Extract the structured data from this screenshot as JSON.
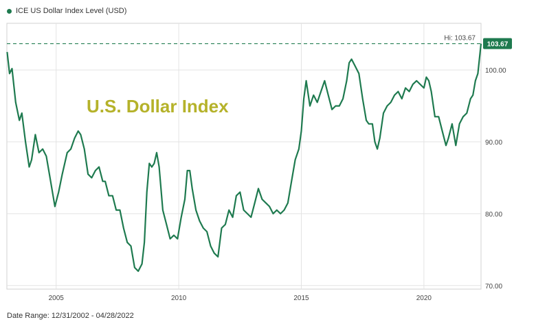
{
  "legend": {
    "label": "ICE US Dollar Index Level (USD)"
  },
  "footer": {
    "date_range": "Date Range: 12/31/2002 - 04/28/2022"
  },
  "colors": {
    "line": "#1e7a4f",
    "overlay_title": "#b5b22a",
    "grid": "#e3e3e3",
    "badge": "#1e7a4f"
  },
  "chart_data": {
    "type": "line",
    "title": "",
    "overlay_text": "U.S. Dollar Index",
    "xlabel": "",
    "ylabel": "",
    "xlim": [
      2002.99,
      2022.33
    ],
    "ylim": [
      69.5,
      106.5
    ],
    "x_ticks": [
      2005,
      2010,
      2015,
      2020
    ],
    "x_tick_labels": [
      "2005",
      "2010",
      "2015",
      "2020"
    ],
    "y_ticks": [
      70,
      80,
      90,
      100
    ],
    "y_tick_labels": [
      "70.00",
      "80.00",
      "90.00",
      "100.00"
    ],
    "high": {
      "label": "Hi: 103.67",
      "value": 103.67
    },
    "last_value_label": "103.67",
    "grid": true,
    "series": [
      {
        "x": [
          2003.0,
          2003.1,
          2003.2,
          2003.35,
          2003.5,
          2003.6,
          2003.75,
          2003.9,
          2004.0,
          2004.15,
          2004.3,
          2004.45,
          2004.6,
          2004.75,
          2004.95,
          2005.1,
          2005.25,
          2005.45,
          2005.6,
          2005.75,
          2005.9,
          2006.0,
          2006.15,
          2006.3,
          2006.45,
          2006.6,
          2006.75,
          2006.9,
          2007.0,
          2007.15,
          2007.3,
          2007.45,
          2007.6,
          2007.75,
          2007.9,
          2008.05,
          2008.2,
          2008.35,
          2008.5,
          2008.6,
          2008.7,
          2008.8,
          2008.9,
          2009.0,
          2009.1,
          2009.2,
          2009.35,
          2009.5,
          2009.65,
          2009.8,
          2009.95,
          2010.1,
          2010.25,
          2010.35,
          2010.45,
          2010.55,
          2010.7,
          2010.85,
          2011.0,
          2011.15,
          2011.3,
          2011.45,
          2011.6,
          2011.75,
          2011.9,
          2012.05,
          2012.2,
          2012.35,
          2012.5,
          2012.65,
          2012.8,
          2012.95,
          2013.1,
          2013.25,
          2013.4,
          2013.55,
          2013.7,
          2013.85,
          2014.0,
          2014.15,
          2014.3,
          2014.45,
          2014.6,
          2014.75,
          2014.9,
          2015.0,
          2015.1,
          2015.2,
          2015.35,
          2015.5,
          2015.65,
          2015.8,
          2015.95,
          2016.1,
          2016.25,
          2016.4,
          2016.55,
          2016.7,
          2016.85,
          2016.95,
          2017.05,
          2017.2,
          2017.35,
          2017.5,
          2017.65,
          2017.75,
          2017.9,
          2018.0,
          2018.1,
          2018.2,
          2018.35,
          2018.5,
          2018.65,
          2018.8,
          2018.95,
          2019.1,
          2019.25,
          2019.4,
          2019.55,
          2019.7,
          2019.85,
          2020.0,
          2020.1,
          2020.2,
          2020.3,
          2020.45,
          2020.6,
          2020.75,
          2020.9,
          2021.0,
          2021.15,
          2021.3,
          2021.45,
          2021.6,
          2021.75,
          2021.9,
          2022.0,
          2022.1,
          2022.2,
          2022.33
        ],
        "y": [
          102.5,
          99.5,
          100.2,
          95.5,
          93.0,
          94.0,
          90.0,
          86.5,
          87.5,
          91.0,
          88.5,
          89.0,
          88.0,
          85.0,
          81.0,
          83.0,
          85.5,
          88.5,
          89.0,
          90.5,
          91.5,
          91.0,
          89.0,
          85.5,
          85.0,
          86.0,
          86.5,
          84.5,
          84.5,
          82.5,
          82.5,
          80.5,
          80.5,
          78.0,
          76.0,
          75.5,
          72.5,
          72.0,
          73.0,
          76.0,
          83.0,
          87.0,
          86.5,
          87.0,
          88.5,
          86.5,
          80.5,
          78.5,
          76.5,
          77.0,
          76.5,
          79.5,
          82.0,
          86.0,
          86.0,
          83.5,
          80.5,
          79.0,
          78.0,
          77.5,
          75.5,
          74.5,
          74.0,
          78.0,
          78.5,
          80.5,
          79.5,
          82.5,
          83.0,
          80.5,
          80.0,
          79.5,
          81.5,
          83.5,
          82.0,
          81.5,
          81.0,
          80.0,
          80.5,
          80.0,
          80.5,
          81.5,
          84.5,
          87.5,
          89.0,
          91.5,
          96.0,
          98.5,
          95.0,
          96.5,
          95.5,
          97.0,
          98.5,
          96.5,
          94.5,
          95.0,
          95.0,
          96.0,
          98.5,
          101.0,
          101.5,
          100.5,
          99.5,
          96.0,
          93.0,
          92.5,
          92.5,
          90.0,
          89.0,
          90.5,
          94.0,
          95.0,
          95.5,
          96.5,
          97.0,
          96.0,
          97.5,
          97.0,
          98.0,
          98.5,
          98.0,
          97.5,
          99.0,
          98.5,
          97.0,
          93.5,
          93.5,
          91.5,
          89.5,
          90.5,
          92.5,
          89.5,
          92.5,
          93.5,
          94.0,
          96.0,
          96.5,
          98.5,
          99.5,
          103.67
        ]
      }
    ]
  }
}
